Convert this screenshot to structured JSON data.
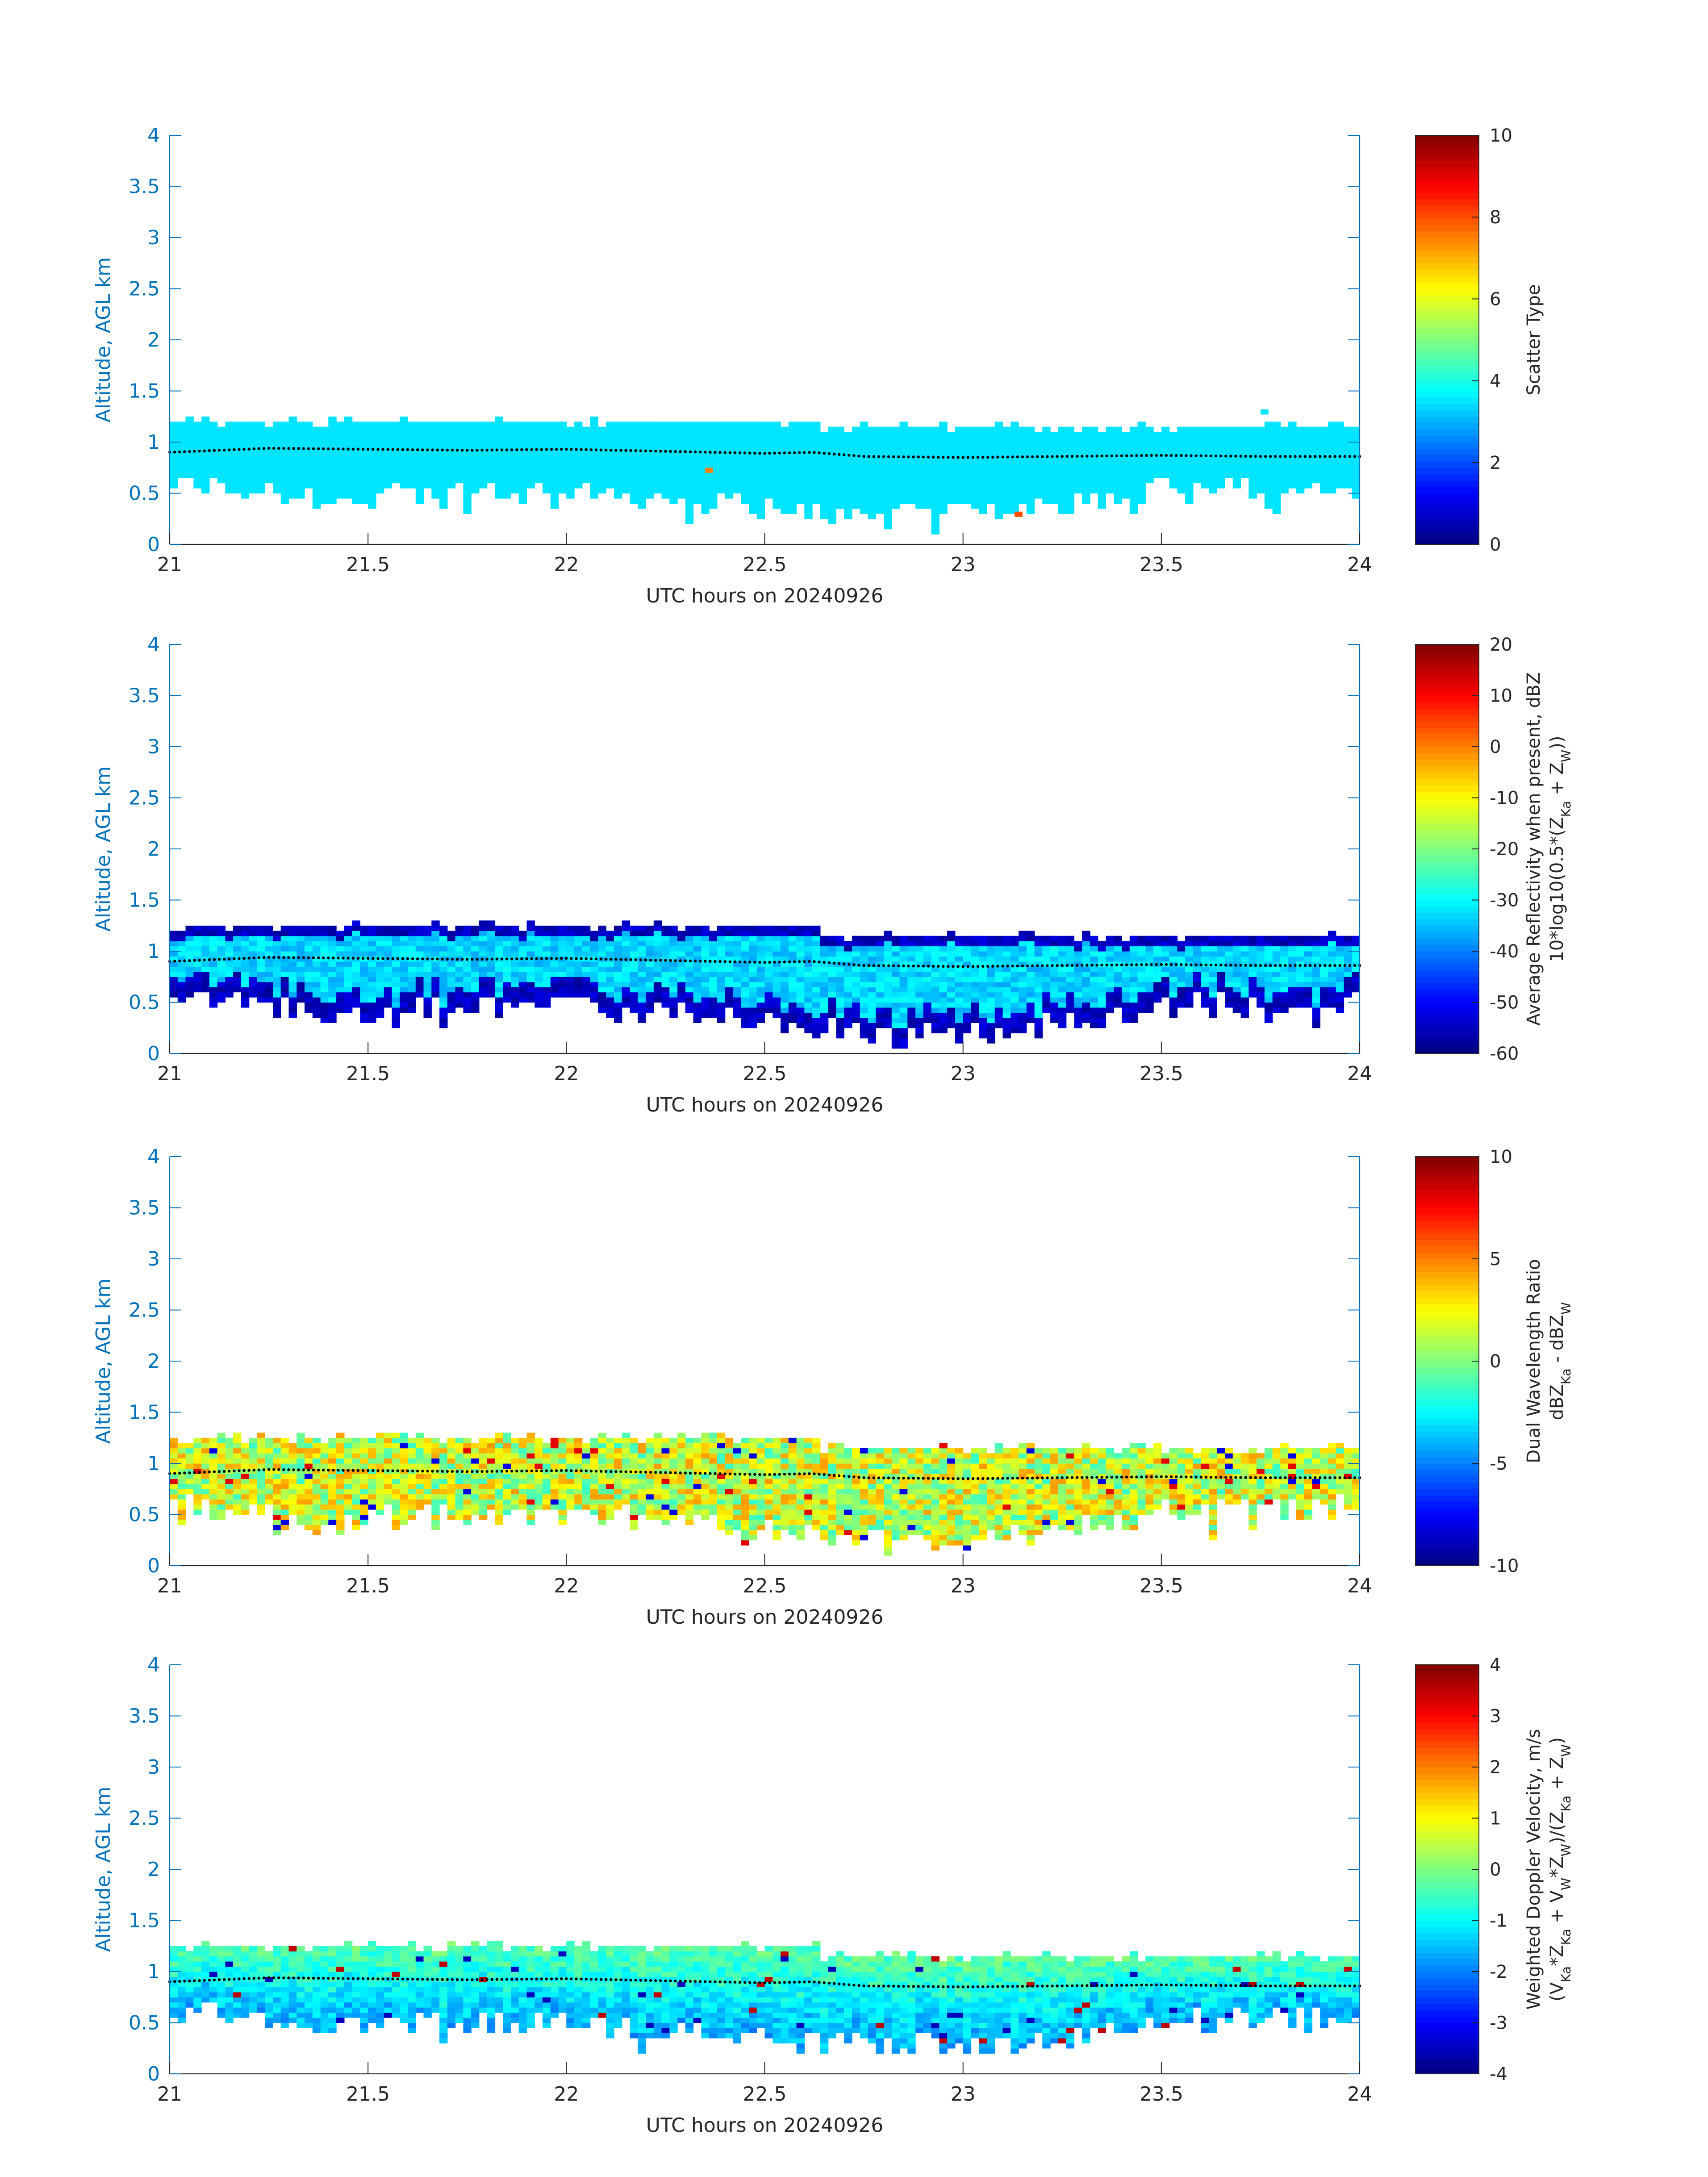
{
  "colors": {
    "axis_blue": "#0072BD",
    "text_dark": "#262626",
    "dots": "#000000",
    "colormap": "jet"
  },
  "chart_data": [
    {
      "type": "heatmap",
      "xlabel": "UTC hours on 20240926",
      "ylabel": "Altitude, AGL km",
      "xlim": [
        21,
        24
      ],
      "ylim": [
        0,
        4
      ],
      "xticks": [
        "21",
        "21.5",
        "22",
        "22.5",
        "23",
        "23.5",
        "24"
      ],
      "yticks": [
        "0",
        "0.5",
        "1",
        "1.5",
        "2",
        "2.5",
        "3",
        "3.5",
        "4"
      ],
      "colorbar": {
        "label": "Scatter Type",
        "label2": "",
        "range": [
          0,
          10
        ],
        "ticks": [
          "0",
          "2",
          "4",
          "6",
          "8",
          "10"
        ]
      },
      "field": "scatter_type",
      "cloud_layer": {
        "top_km": [
          [
            21.0,
            1.2
          ],
          [
            22.64,
            1.2
          ],
          [
            22.64,
            1.15
          ],
          [
            24.0,
            1.15
          ]
        ],
        "base_km": [
          [
            21.0,
            0.65
          ],
          [
            21.4,
            0.45
          ],
          [
            21.5,
            0.5
          ],
          [
            22.0,
            0.55
          ],
          [
            22.5,
            0.4
          ],
          [
            22.85,
            0.3
          ],
          [
            23.1,
            0.35
          ],
          [
            23.5,
            0.55
          ],
          [
            24.0,
            0.6
          ]
        ],
        "dominant_value": 3.5,
        "isolated_points": [
          [
            22.35,
            0.7,
            7.5
          ],
          [
            23.13,
            0.27,
            8.0
          ],
          [
            23.75,
            1.27,
            3.5
          ]
        ]
      },
      "dots_line": [
        [
          21.0,
          0.9
        ],
        [
          21.25,
          0.94
        ],
        [
          21.5,
          0.93
        ],
        [
          21.75,
          0.92
        ],
        [
          22.0,
          0.93
        ],
        [
          22.25,
          0.91
        ],
        [
          22.5,
          0.89
        ],
        [
          22.62,
          0.9
        ],
        [
          22.75,
          0.86
        ],
        [
          23.0,
          0.85
        ],
        [
          23.5,
          0.87
        ],
        [
          23.75,
          0.86
        ],
        [
          24.0,
          0.86
        ]
      ]
    },
    {
      "type": "heatmap",
      "xlabel": "UTC hours on 20240926",
      "ylabel": "Altitude, AGL km",
      "xlim": [
        21,
        24
      ],
      "ylim": [
        0,
        4
      ],
      "xticks": [
        "21",
        "21.5",
        "22",
        "22.5",
        "23",
        "23.5",
        "24"
      ],
      "yticks": [
        "0",
        "0.5",
        "1",
        "1.5",
        "2",
        "2.5",
        "3",
        "3.5",
        "4"
      ],
      "colorbar": {
        "label": "Average Reflectivity when present, dBZ",
        "label2": "10*log10(0.5*(Z_Ka + Z_W))",
        "range": [
          -60,
          20
        ],
        "ticks": [
          "-60",
          "-50",
          "-40",
          "-30",
          "-20",
          "-10",
          "0",
          "10",
          "20"
        ]
      },
      "field": "reflectivity_dbz",
      "cloud_layer": {
        "top_km": [
          [
            21.0,
            1.22
          ],
          [
            22.64,
            1.2
          ],
          [
            22.64,
            1.12
          ],
          [
            24.0,
            1.12
          ]
        ],
        "base_km": [
          [
            21.0,
            0.6
          ],
          [
            21.4,
            0.4
          ],
          [
            21.5,
            0.45
          ],
          [
            22.0,
            0.5
          ],
          [
            22.5,
            0.35
          ],
          [
            22.85,
            0.2
          ],
          [
            23.15,
            0.25
          ],
          [
            23.5,
            0.5
          ],
          [
            24.0,
            0.55
          ]
        ],
        "core_value": -33,
        "edge_value": -55
      },
      "dots_line": [
        [
          21.0,
          0.9
        ],
        [
          21.25,
          0.94
        ],
        [
          21.5,
          0.93
        ],
        [
          21.75,
          0.92
        ],
        [
          22.0,
          0.93
        ],
        [
          22.25,
          0.91
        ],
        [
          22.5,
          0.89
        ],
        [
          22.62,
          0.9
        ],
        [
          22.75,
          0.86
        ],
        [
          23.0,
          0.85
        ],
        [
          23.5,
          0.87
        ],
        [
          23.75,
          0.86
        ],
        [
          24.0,
          0.86
        ]
      ]
    },
    {
      "type": "heatmap",
      "xlabel": "UTC hours on 20240926",
      "ylabel": "Altitude, AGL km",
      "xlim": [
        21,
        24
      ],
      "ylim": [
        0,
        4
      ],
      "xticks": [
        "21",
        "21.5",
        "22",
        "22.5",
        "23",
        "23.5",
        "24"
      ],
      "yticks": [
        "0",
        "0.5",
        "1",
        "1.5",
        "2",
        "2.5",
        "3",
        "3.5",
        "4"
      ],
      "colorbar": {
        "label": "Dual Wavelength Ratio",
        "label2": "dBZ_Ka - dBZ_W",
        "range": [
          -10,
          10
        ],
        "ticks": [
          "-10",
          "-5",
          "0",
          "5",
          "10"
        ]
      },
      "field": "dwr_db",
      "cloud_layer": {
        "top_km": [
          [
            21.0,
            1.22
          ],
          [
            22.64,
            1.2
          ],
          [
            22.64,
            1.12
          ],
          [
            24.0,
            1.12
          ]
        ],
        "base_km": [
          [
            21.0,
            0.65
          ],
          [
            21.4,
            0.45
          ],
          [
            21.5,
            0.5
          ],
          [
            22.0,
            0.55
          ],
          [
            22.5,
            0.4
          ],
          [
            22.85,
            0.25
          ],
          [
            23.15,
            0.3
          ],
          [
            23.5,
            0.55
          ],
          [
            24.0,
            0.6
          ]
        ],
        "typical_value": 1.5,
        "spread": 3
      },
      "dots_line": [
        [
          21.0,
          0.9
        ],
        [
          21.25,
          0.94
        ],
        [
          21.5,
          0.93
        ],
        [
          21.75,
          0.92
        ],
        [
          22.0,
          0.93
        ],
        [
          22.25,
          0.91
        ],
        [
          22.5,
          0.89
        ],
        [
          22.62,
          0.9
        ],
        [
          22.75,
          0.86
        ],
        [
          23.0,
          0.85
        ],
        [
          23.5,
          0.87
        ],
        [
          23.75,
          0.86
        ],
        [
          24.0,
          0.86
        ]
      ]
    },
    {
      "type": "heatmap",
      "xlabel": "UTC hours on 20240926",
      "ylabel": "Altitude, AGL km",
      "xlim": [
        21,
        24
      ],
      "ylim": [
        0,
        4
      ],
      "xticks": [
        "21",
        "21.5",
        "22",
        "22.5",
        "23",
        "23.5",
        "24"
      ],
      "yticks": [
        "0",
        "0.5",
        "1",
        "1.5",
        "2",
        "2.5",
        "3",
        "3.5",
        "4"
      ],
      "colorbar": {
        "label": "Weighted Doppler Velocity, m/s",
        "label2": "(V_Ka*Z_Ka + V_W*Z_W)/(Z_Ka + Z_W)",
        "range": [
          -4,
          4
        ],
        "ticks": [
          "-4",
          "-3",
          "-2",
          "-1",
          "0",
          "1",
          "2",
          "3",
          "4"
        ]
      },
      "field": "doppler_velocity_ms",
      "cloud_layer": {
        "top_km": [
          [
            21.0,
            1.22
          ],
          [
            22.64,
            1.2
          ],
          [
            22.64,
            1.1
          ],
          [
            24.0,
            1.12
          ]
        ],
        "base_km": [
          [
            21.0,
            0.65
          ],
          [
            21.4,
            0.45
          ],
          [
            21.5,
            0.5
          ],
          [
            22.0,
            0.55
          ],
          [
            22.5,
            0.35
          ],
          [
            22.85,
            0.3
          ],
          [
            23.15,
            0.3
          ],
          [
            23.5,
            0.55
          ],
          [
            24.0,
            0.6
          ]
        ],
        "top_value": -0.3,
        "bottom_value": -1.6
      },
      "dots_line": [
        [
          21.0,
          0.9
        ],
        [
          21.25,
          0.94
        ],
        [
          21.5,
          0.93
        ],
        [
          21.75,
          0.92
        ],
        [
          22.0,
          0.93
        ],
        [
          22.25,
          0.91
        ],
        [
          22.5,
          0.89
        ],
        [
          22.62,
          0.9
        ],
        [
          22.75,
          0.86
        ],
        [
          23.0,
          0.85
        ],
        [
          23.5,
          0.87
        ],
        [
          23.75,
          0.86
        ],
        [
          24.0,
          0.86
        ]
      ]
    }
  ]
}
